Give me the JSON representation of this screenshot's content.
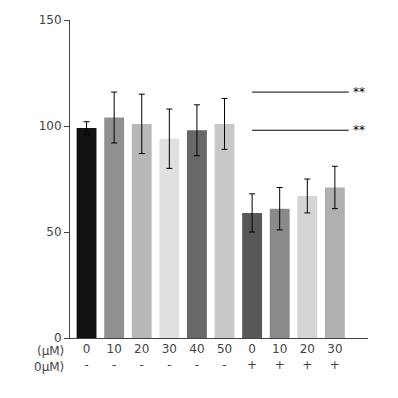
{
  "chart_data": {
    "type": "bar",
    "categories": [
      "0\n-",
      "10\n-",
      "20\n-",
      "30\n-",
      "40\n-",
      "50\n-",
      "0\n+",
      "10\n+",
      "20\n+",
      "30\n+"
    ],
    "category_prefix": "(μM)\n0μM)",
    "values": [
      99,
      104,
      101,
      94,
      98,
      101,
      59,
      61,
      67,
      71
    ],
    "errors": [
      3,
      12,
      14,
      14,
      12,
      12,
      9,
      10,
      8,
      10
    ],
    "colors": [
      "#111111",
      "#909090",
      "#b8b8b8",
      "#e0e0e0",
      "#686868",
      "#c8c8c8",
      "#585858",
      "#8a8a8a",
      "#d5d5d5",
      "#b0b0b0"
    ],
    "ylim": [
      0,
      150
    ],
    "yticks": [
      0,
      50,
      100,
      150
    ],
    "grid": false,
    "annotations": [
      {
        "text": "**",
        "y": 98,
        "from": 6,
        "to": 9
      },
      {
        "text": "**",
        "y": 116,
        "from": 6,
        "to": 9
      }
    ]
  }
}
